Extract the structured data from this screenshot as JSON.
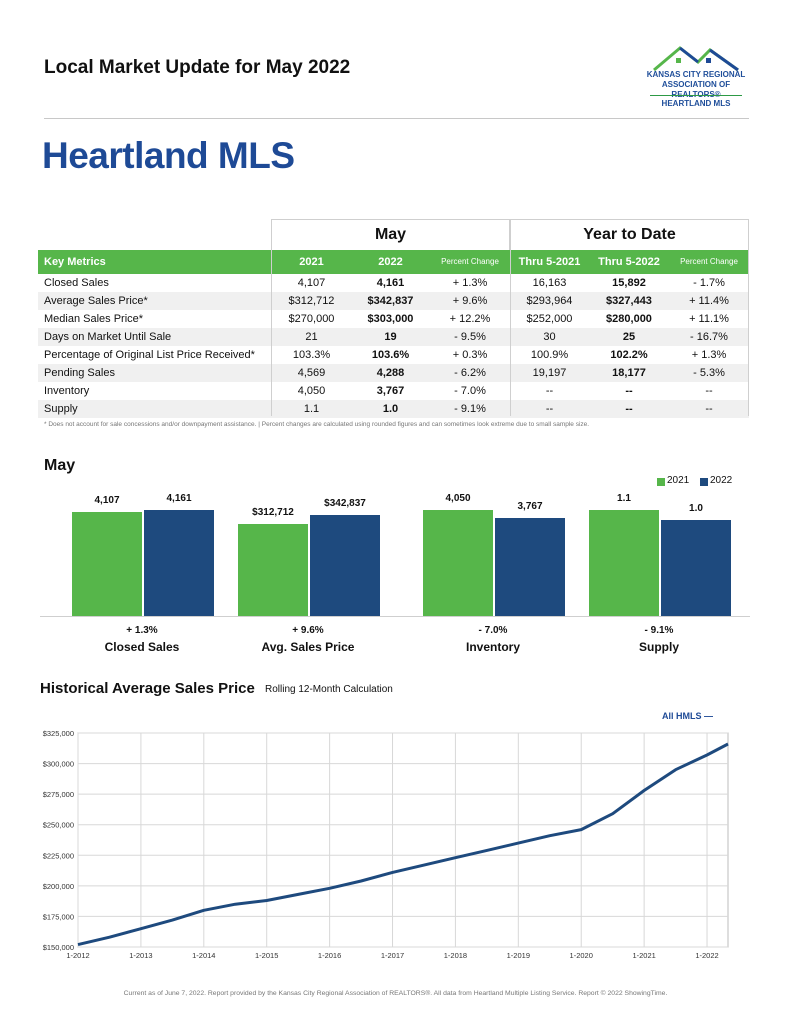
{
  "header": {
    "title": "Local Market Update for May 2022"
  },
  "logo": {
    "line1": "KANSAS CITY REGIONAL",
    "line2": "ASSOCIATION OF REALTORS®",
    "line3": "HEARTLAND MLS"
  },
  "page_title": "Heartland MLS",
  "metrics_table": {
    "group_may": "May",
    "group_ytd": "Year to Date",
    "columns": [
      "Key Metrics",
      "2021",
      "2022",
      "Percent Change",
      "Thru 5-2021",
      "Thru 5-2022",
      "Percent Change"
    ],
    "rows": [
      [
        "Closed Sales",
        "4,107",
        "4,161",
        "+ 1.3%",
        "16,163",
        "15,892",
        "- 1.7%"
      ],
      [
        "Average Sales Price*",
        "$312,712",
        "$342,837",
        "+ 9.6%",
        "$293,964",
        "$327,443",
        "+ 11.4%"
      ],
      [
        "Median Sales Price*",
        "$270,000",
        "$303,000",
        "+ 12.2%",
        "$252,000",
        "$280,000",
        "+ 11.1%"
      ],
      [
        "Days on Market Until Sale",
        "21",
        "19",
        "- 9.5%",
        "30",
        "25",
        "- 16.7%"
      ],
      [
        "Percentage of Original List Price Received*",
        "103.3%",
        "103.6%",
        "+ 0.3%",
        "100.9%",
        "102.2%",
        "+ 1.3%"
      ],
      [
        "Pending Sales",
        "4,569",
        "4,288",
        "- 6.2%",
        "19,197",
        "18,177",
        "- 5.3%"
      ],
      [
        "Inventory",
        "4,050",
        "3,767",
        "- 7.0%",
        "--",
        "--",
        "--"
      ],
      [
        "Supply",
        "1.1",
        "1.0",
        "- 9.1%",
        "--",
        "--",
        "--"
      ]
    ],
    "footnote": "* Does not account for sale concessions and/or downpayment assistance.  |  Percent changes are calculated using rounded figures and can sometimes look extreme due to small sample size."
  },
  "chart_data": [
    {
      "type": "bar",
      "title": "May",
      "series_names": [
        "2021",
        "2022"
      ],
      "colors": {
        "2021": "#56b64a",
        "2022": "#1e4a7e"
      },
      "groups": [
        {
          "name": "Closed Sales",
          "change": "+ 1.3%",
          "v2021": 4107,
          "v2022": 4161,
          "l2021": "4,107",
          "l2022": "4,161"
        },
        {
          "name": "Avg. Sales Price",
          "change": "+ 9.6%",
          "v2021": 312712,
          "v2022": 342837,
          "l2021": "$312,712",
          "l2022": "$342,837"
        },
        {
          "name": "Inventory",
          "change": "- 7.0%",
          "v2021": 4050,
          "v2022": 3767,
          "l2021": "4,050",
          "l2022": "3,767"
        },
        {
          "name": "Supply",
          "change": "- 9.1%",
          "v2021": 1.1,
          "v2022": 1.0,
          "l2021": "1.1",
          "l2022": "1.0"
        }
      ]
    },
    {
      "type": "line",
      "title": "Historical Average Sales Price",
      "subtitle": "Rolling 12-Month Calculation",
      "series_name": "All HMLS",
      "color": "#1e4a7e",
      "ylim": [
        150000,
        325000
      ],
      "yticks": [
        "$325,000",
        "$300,000",
        "$275,000",
        "$250,000",
        "$225,000",
        "$200,000",
        "$175,000",
        "$150,000"
      ],
      "xticks": [
        "1-2012",
        "1-2013",
        "1-2014",
        "1-2015",
        "1-2016",
        "1-2017",
        "1-2018",
        "1-2019",
        "1-2020",
        "1-2021",
        "1-2022"
      ],
      "points": [
        [
          "1-2012",
          152000
        ],
        [
          "7-2012",
          158000
        ],
        [
          "1-2013",
          165000
        ],
        [
          "7-2013",
          172000
        ],
        [
          "1-2014",
          180000
        ],
        [
          "7-2014",
          185000
        ],
        [
          "1-2015",
          188000
        ],
        [
          "7-2015",
          193000
        ],
        [
          "1-2016",
          198000
        ],
        [
          "7-2016",
          204000
        ],
        [
          "1-2017",
          211000
        ],
        [
          "7-2017",
          217000
        ],
        [
          "1-2018",
          223000
        ],
        [
          "7-2018",
          229000
        ],
        [
          "1-2019",
          235000
        ],
        [
          "7-2019",
          241000
        ],
        [
          "1-2020",
          246000
        ],
        [
          "7-2020",
          259000
        ],
        [
          "1-2021",
          278000
        ],
        [
          "7-2021",
          295000
        ],
        [
          "1-2022",
          307000
        ],
        [
          "5-2022",
          316000
        ]
      ]
    }
  ],
  "footer": "Current as of June 7, 2022. Report provided by the Kansas City Regional Association of REALTORS®. All data from Heartland Multiple Listing Service. Report © 2022 ShowingTime."
}
